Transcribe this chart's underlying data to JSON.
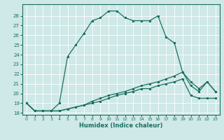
{
  "xlabel": "Humidex (Indice chaleur)",
  "ylabel": "",
  "bg_color": "#cfe8e8",
  "grid_color": "#ffffff",
  "line_color": "#1a7060",
  "xlim": [
    -0.5,
    23.5
  ],
  "ylim": [
    17.8,
    29.2
  ],
  "yticks": [
    18,
    19,
    20,
    21,
    22,
    23,
    24,
    25,
    26,
    27,
    28
  ],
  "xticks": [
    0,
    1,
    2,
    3,
    4,
    5,
    6,
    7,
    8,
    9,
    10,
    11,
    12,
    13,
    14,
    15,
    16,
    17,
    18,
    19,
    20,
    21,
    22,
    23
  ],
  "line1_x": [
    0,
    1,
    2,
    3,
    4,
    5,
    6,
    7,
    8,
    9,
    10,
    11,
    12,
    13,
    14,
    15,
    16,
    17,
    18,
    19,
    20,
    21,
    22,
    23
  ],
  "line1_y": [
    19.0,
    18.2,
    18.2,
    18.2,
    19.0,
    23.8,
    25.0,
    26.2,
    27.5,
    27.8,
    28.5,
    28.5,
    27.8,
    27.5,
    27.5,
    27.5,
    28.0,
    25.8,
    25.2,
    22.2,
    21.2,
    20.5,
    21.2,
    20.2
  ],
  "line2_x": [
    0,
    1,
    2,
    3,
    4,
    5,
    6,
    7,
    8,
    9,
    10,
    11,
    12,
    13,
    14,
    15,
    16,
    17,
    18,
    19,
    20,
    21,
    22,
    23
  ],
  "line2_y": [
    19.0,
    18.2,
    18.2,
    18.2,
    18.2,
    18.4,
    18.6,
    18.8,
    19.2,
    19.5,
    19.8,
    20.0,
    20.2,
    20.5,
    20.8,
    21.0,
    21.2,
    21.5,
    21.8,
    22.2,
    20.8,
    20.2,
    21.2,
    20.2
  ],
  "line3_x": [
    0,
    1,
    2,
    3,
    4,
    5,
    6,
    7,
    8,
    9,
    10,
    11,
    12,
    13,
    14,
    15,
    16,
    17,
    18,
    19,
    20,
    21,
    22,
    23
  ],
  "line3_y": [
    19.0,
    18.2,
    18.2,
    18.2,
    18.2,
    18.4,
    18.6,
    18.8,
    19.0,
    19.2,
    19.5,
    19.8,
    20.0,
    20.2,
    20.5,
    20.5,
    20.8,
    21.0,
    21.2,
    21.5,
    19.8,
    19.5,
    19.5,
    19.5
  ]
}
